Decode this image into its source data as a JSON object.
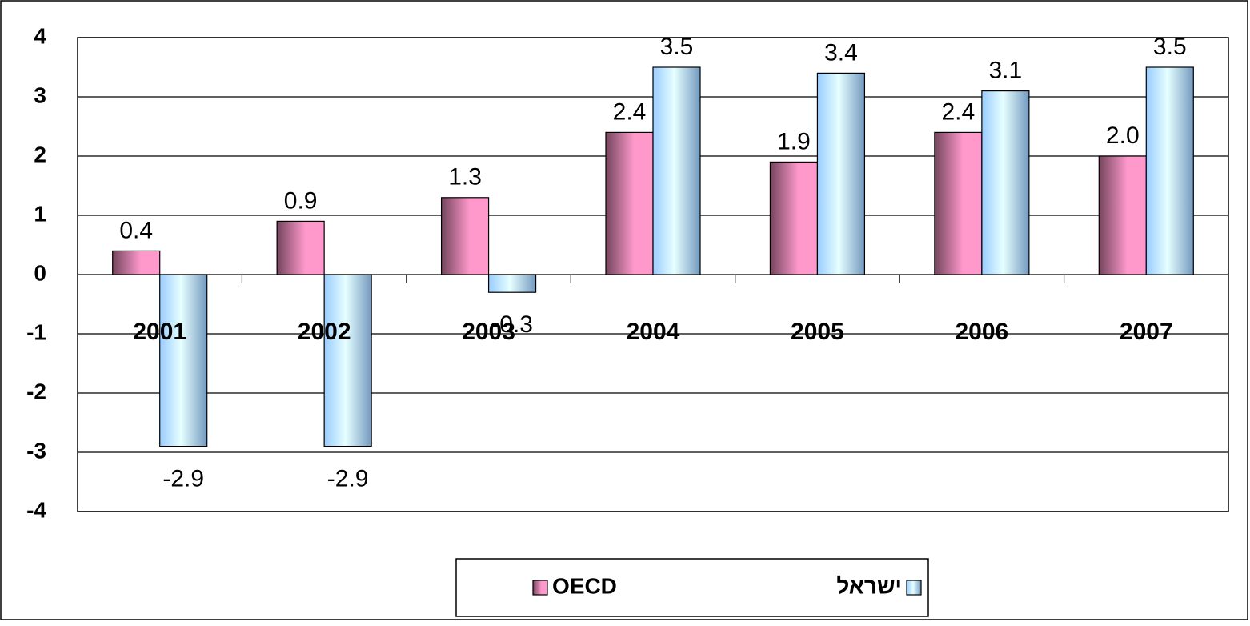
{
  "chart_data": {
    "type": "bar",
    "categories": [
      "2001",
      "2002",
      "2003",
      "2004",
      "2005",
      "2006",
      "2007"
    ],
    "series": [
      {
        "name": "OECD",
        "color": "#ff99cc",
        "values": [
          0.4,
          0.9,
          1.3,
          2.4,
          1.9,
          2.4,
          2.0
        ],
        "value_labels": [
          "0.4",
          "0.9",
          "1.3",
          "2.4",
          "1.9",
          "2.4",
          "2.0"
        ]
      },
      {
        "name": "ישראל",
        "color": "#99ccff",
        "values": [
          -2.9,
          -2.9,
          -0.3,
          3.5,
          3.4,
          3.1,
          3.5
        ],
        "value_labels": [
          "-2.9",
          "-2.9",
          "-0.3",
          "3.5",
          "3.4",
          "3.1",
          "3.5"
        ]
      }
    ],
    "ylim": [
      -4,
      4
    ],
    "yticks": [
      -4,
      -3,
      -2,
      -1,
      0,
      1,
      2,
      3,
      4
    ],
    "grid": true,
    "legend": "bottom"
  }
}
